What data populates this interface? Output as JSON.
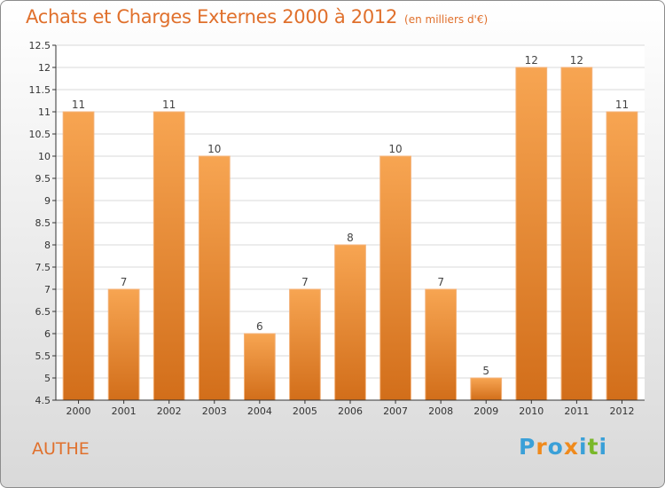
{
  "header": {
    "title": "Achats et Charges Externes 2000 à 2012",
    "subtitle": "(en milliers d'€)"
  },
  "footer": {
    "commune": "AUTHE",
    "logo_text": "Proxiti",
    "logo_letters": [
      "P",
      "r",
      "o",
      "x",
      "i",
      "t",
      "i"
    ],
    "logo_colors": [
      "#3aa0d8",
      "#f08a1c",
      "#3aa0d8",
      "#f08a1c",
      "#3aa0d8",
      "#7ab829",
      "#3aa0d8"
    ]
  },
  "colors": {
    "accent": "#e0702c",
    "bar_top": "#f7a552",
    "bar_bottom": "#d26e1a",
    "axis": "#333333",
    "grid": "#d8d8d8"
  },
  "chart_data": {
    "type": "bar",
    "categories": [
      "2000",
      "2001",
      "2002",
      "2003",
      "2004",
      "2005",
      "2006",
      "2007",
      "2008",
      "2009",
      "2010",
      "2011",
      "2012"
    ],
    "values": [
      11,
      7,
      11,
      10,
      6,
      7,
      8,
      10,
      7,
      5,
      12,
      12,
      11
    ],
    "data_labels": [
      "11",
      "7",
      "11",
      "10",
      "6",
      "7",
      "8",
      "10",
      "7",
      "5",
      "12",
      "12",
      "11"
    ],
    "ylim": [
      4.5,
      12.5
    ],
    "yticks": [
      "4.5",
      "5",
      "5.5",
      "6",
      "6.5",
      "7",
      "7.5",
      "8",
      "8.5",
      "9",
      "9.5",
      "10",
      "10.5",
      "11",
      "11.5",
      "12",
      "12.5"
    ],
    "grid": true,
    "legend": "none"
  }
}
